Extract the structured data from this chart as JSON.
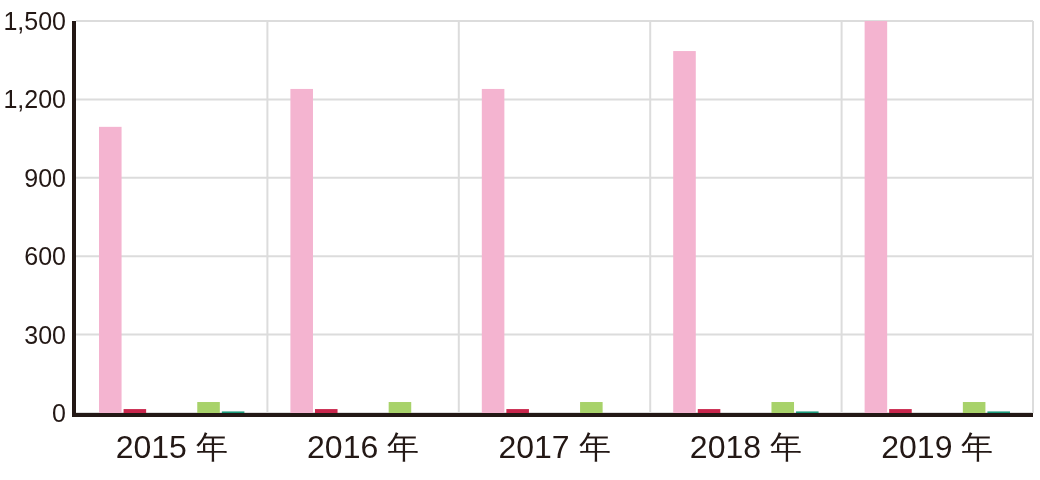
{
  "chart_data": {
    "type": "bar",
    "categories": [
      "2015 年",
      "2016 年",
      "2017 年",
      "2018 年",
      "2019 年"
    ],
    "series": [
      {
        "color": "#f4b4d0",
        "values": [
          1095,
          1240,
          1240,
          1385,
          1500
        ]
      },
      {
        "color": "#c9264c",
        "values": [
          15,
          15,
          15,
          15,
          15
        ]
      },
      {
        "values": [
          null,
          null,
          null,
          null,
          null
        ]
      },
      {
        "values": [
          null,
          null,
          null,
          null,
          null
        ]
      },
      {
        "color": "#a8d26a",
        "values": [
          42,
          42,
          42,
          42,
          42
        ]
      },
      {
        "color": "#1a9a7a",
        "values": [
          6,
          null,
          null,
          6,
          6
        ]
      }
    ],
    "ylim": [
      0,
      1500
    ],
    "yticks": [
      0,
      {
        "value": 300,
        "label": "300"
      },
      {
        "value": 600,
        "label": "600"
      },
      {
        "value": 900,
        "label": "900"
      },
      {
        "value": 1200,
        "label": "1,200"
      },
      {
        "value": 1500,
        "label": "1,500"
      }
    ],
    "grid": true
  }
}
